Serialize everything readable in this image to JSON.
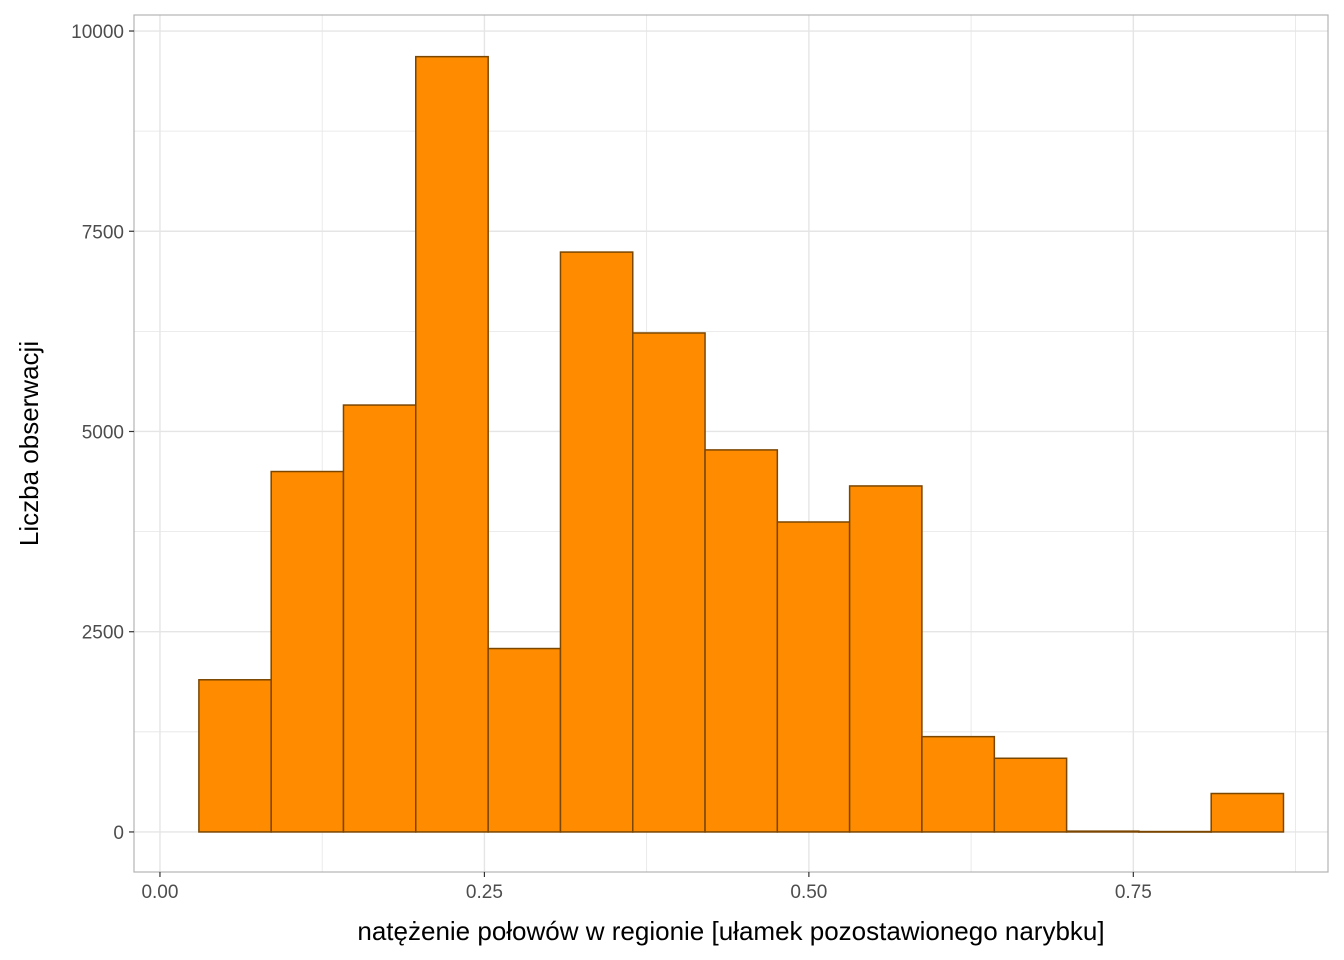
{
  "chart_data": {
    "type": "bar",
    "subtype": "histogram",
    "xlabel": "natężenie połowów w regionie [ułamek pozostawionego narybku]",
    "ylabel": "Liczba obserwacji",
    "xlim": [
      -0.02,
      0.9
    ],
    "ylim": [
      -500,
      10200
    ],
    "x_ticks": [
      "0.00",
      "0.25",
      "0.50",
      "0.75"
    ],
    "x_tick_values": [
      0.0,
      0.25,
      0.5,
      0.75
    ],
    "y_ticks": [
      "0",
      "2500",
      "5000",
      "7500",
      "10000"
    ],
    "y_tick_values": [
      0,
      2500,
      5000,
      7500,
      10000
    ],
    "grid": true,
    "bin_edges": [
      0.03,
      0.0857,
      0.1414,
      0.1971,
      0.2529,
      0.3086,
      0.3643,
      0.42,
      0.4757,
      0.5314,
      0.5871,
      0.6429,
      0.6986,
      0.7543,
      0.81,
      0.8657
    ],
    "values": [
      1900,
      4500,
      5330,
      9680,
      2290,
      7240,
      6230,
      4770,
      3870,
      4320,
      1190,
      920,
      10,
      5,
      480
    ],
    "bar_fill": "#ff8c00",
    "bar_stroke": "#7a4600",
    "grid_color": "#e5e5e5",
    "panel_border": "#b3b3b3"
  }
}
